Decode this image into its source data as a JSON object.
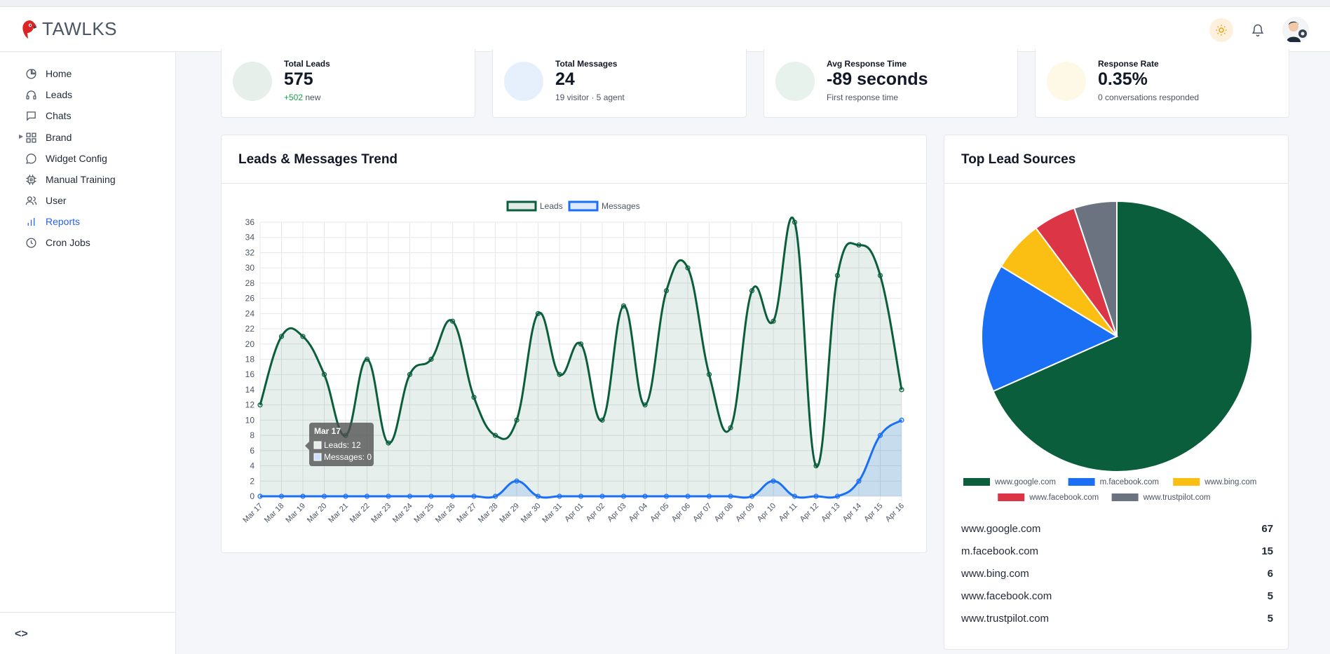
{
  "app": {
    "brand": "TAWLKS"
  },
  "sidebar": {
    "items": [
      {
        "label": "Home",
        "icon": "pie-chart-icon"
      },
      {
        "label": "Leads",
        "icon": "headset-icon"
      },
      {
        "label": "Chats",
        "icon": "chat-icon"
      },
      {
        "label": "Brand",
        "icon": "grid-icon"
      },
      {
        "label": "Widget Config",
        "icon": "message-circle-icon"
      },
      {
        "label": "Manual Training",
        "icon": "chip-icon"
      },
      {
        "label": "User",
        "icon": "users-icon"
      },
      {
        "label": "Reports",
        "icon": "bar-chart-icon",
        "active": true
      },
      {
        "label": "Cron Jobs",
        "icon": "clock-icon"
      }
    ]
  },
  "stats": [
    {
      "label": "Total Leads",
      "value": "575",
      "sub_highlight": "+502",
      "sub": "new",
      "color": "#e6efe9"
    },
    {
      "label": "Total Messages",
      "value": "24",
      "sub": "19 visitor · 5 agent",
      "color": "#e6f0fd"
    },
    {
      "label": "Avg Response Time",
      "value": "-89 seconds",
      "sub": "First response time",
      "color": "#e7f2ec"
    },
    {
      "label": "Response Rate",
      "value": "0.35%",
      "sub": "0 conversations responded",
      "color": "#fef8e6"
    }
  ],
  "trend": {
    "title": "Leads & Messages Trend",
    "tooltip": {
      "title": "Mar 17",
      "leads": "Leads: 12",
      "messages": "Messages: 0"
    }
  },
  "sources": {
    "title": "Top Lead Sources",
    "rows": [
      {
        "name": "www.google.com",
        "count": "67"
      },
      {
        "name": "m.facebook.com",
        "count": "15"
      },
      {
        "name": "www.bing.com",
        "count": "6"
      },
      {
        "name": "www.facebook.com",
        "count": "5"
      },
      {
        "name": "www.trustpilot.com",
        "count": "5"
      }
    ]
  },
  "colors": {
    "leads": "#0b5e3c",
    "messages": "#1a6ff5",
    "accent": "#2563eb"
  },
  "chart_data": [
    {
      "type": "line",
      "title": "",
      "xlabel": "",
      "ylabel": "",
      "x": [
        "Mar 17",
        "Mar 18",
        "Mar 19",
        "Mar 20",
        "Mar 21",
        "Mar 22",
        "Mar 23",
        "Mar 24",
        "Mar 25",
        "Mar 26",
        "Mar 27",
        "Mar 28",
        "Mar 29",
        "Mar 30",
        "Mar 31",
        "Apr 01",
        "Apr 02",
        "Apr 03",
        "Apr 04",
        "Apr 05",
        "Apr 06",
        "Apr 07",
        "Apr 08",
        "Apr 09",
        "Apr 10",
        "Apr 11",
        "Apr 12",
        "Apr 13",
        "Apr 14",
        "Apr 15",
        "Apr 16"
      ],
      "series": [
        {
          "name": "Leads",
          "color": "#0b5e3c",
          "values": [
            12,
            21,
            21,
            16,
            8,
            18,
            7,
            16,
            18,
            23,
            13,
            8,
            10,
            24,
            16,
            20,
            10,
            25,
            12,
            27,
            30,
            16,
            9,
            27,
            23,
            36,
            4,
            29,
            33,
            29,
            14
          ]
        },
        {
          "name": "Messages",
          "color": "#1a6ff5",
          "values": [
            0,
            0,
            0,
            0,
            0,
            0,
            0,
            0,
            0,
            0,
            0,
            0,
            2,
            0,
            0,
            0,
            0,
            0,
            0,
            0,
            0,
            0,
            0,
            0,
            2,
            0,
            0,
            0,
            2,
            8,
            10
          ]
        }
      ],
      "ylim": [
        0,
        36
      ],
      "yticks": [
        0,
        2,
        4,
        6,
        8,
        10,
        12,
        14,
        16,
        18,
        20,
        22,
        24,
        26,
        28,
        30,
        32,
        34,
        36
      ],
      "grid": true,
      "legend": "top-center",
      "area_fill": true
    },
    {
      "type": "pie",
      "title": "",
      "categories": [
        "www.google.com",
        "m.facebook.com",
        "www.bing.com",
        "www.facebook.com",
        "www.trustpilot.com"
      ],
      "values": [
        67,
        15,
        6,
        5,
        5
      ],
      "colors": [
        "#0b5e3c",
        "#1a6ff5",
        "#fbbf14",
        "#dc3545",
        "#6b7280"
      ],
      "legend": "bottom"
    }
  ]
}
